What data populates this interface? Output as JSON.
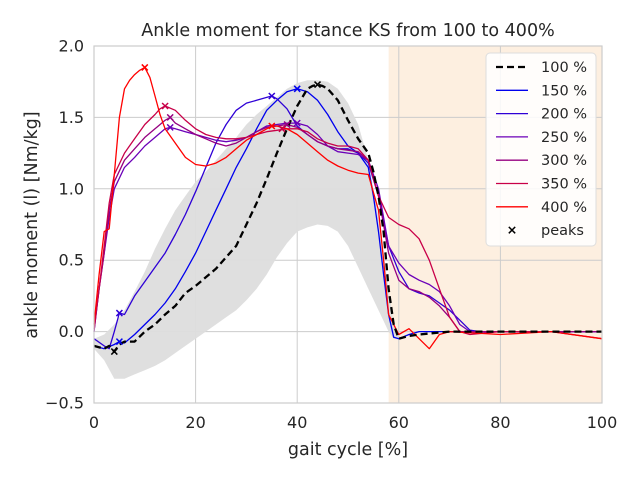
{
  "chart_data": {
    "type": "line",
    "title": "Ankle moment for stance KS from 100 to 400%",
    "xlabel": "gait cycle [%]",
    "ylabel": "ankle moment (l) [Nm/kg]",
    "xlim": [
      0,
      100
    ],
    "ylim": [
      -0.5,
      2.0
    ],
    "xticks": [
      0,
      20,
      40,
      60,
      80,
      100
    ],
    "xtick_labels": [
      "0",
      "20",
      "40",
      "60",
      "80",
      "100"
    ],
    "yticks": [
      -0.5,
      0.0,
      0.5,
      1.0,
      1.5,
      2.0
    ],
    "ytick_labels": [
      "−0.5",
      "0.0",
      "0.5",
      "1.0",
      "1.5",
      "2.0"
    ],
    "grid": true,
    "legend_position": "top-right",
    "shaded_region": {
      "x_start": 58,
      "x_end": 100,
      "color": "#fdefe0"
    },
    "band": {
      "color": "#dddddd",
      "x": [
        0,
        2,
        4,
        6,
        8,
        10,
        12,
        14,
        16,
        18,
        20,
        22,
        24,
        26,
        28,
        30,
        32,
        34,
        36,
        38,
        40,
        42,
        44,
        46,
        48,
        50,
        52,
        54,
        56,
        58,
        59,
        60
      ],
      "upper": [
        -0.05,
        -0.02,
        0.05,
        0.15,
        0.28,
        0.42,
        0.58,
        0.72,
        0.85,
        0.95,
        1.05,
        1.12,
        1.2,
        1.28,
        1.36,
        1.45,
        1.52,
        1.58,
        1.64,
        1.7,
        1.74,
        1.76,
        1.76,
        1.75,
        1.7,
        1.6,
        1.45,
        1.2,
        0.8,
        0.3,
        0.05,
        0.0
      ],
      "lower": [
        -0.12,
        -0.2,
        -0.33,
        -0.33,
        -0.3,
        -0.27,
        -0.24,
        -0.2,
        -0.15,
        -0.1,
        -0.05,
        0.0,
        0.05,
        0.1,
        0.15,
        0.22,
        0.3,
        0.4,
        0.52,
        0.62,
        0.7,
        0.73,
        0.75,
        0.74,
        0.7,
        0.6,
        0.45,
        0.3,
        0.15,
        0.0,
        -0.05,
        -0.05
      ]
    },
    "series": [
      {
        "name": "100 %",
        "color": "#000000",
        "dashed": true,
        "width": 2.3,
        "x": [
          0,
          2,
          3,
          4,
          5,
          6,
          8,
          10,
          12,
          14,
          16,
          18,
          20,
          22,
          24,
          26,
          28,
          30,
          32,
          34,
          36,
          38,
          40,
          42,
          43,
          44,
          45,
          46,
          48,
          50,
          52,
          54,
          55,
          56,
          57,
          58,
          59,
          60,
          62,
          64,
          70,
          80,
          90,
          100
        ],
        "y": [
          -0.1,
          -0.12,
          -0.1,
          -0.14,
          -0.09,
          -0.07,
          -0.07,
          0.0,
          0.05,
          0.12,
          0.18,
          0.27,
          0.32,
          0.38,
          0.44,
          0.52,
          0.6,
          0.75,
          0.9,
          1.07,
          1.25,
          1.42,
          1.58,
          1.7,
          1.72,
          1.73,
          1.72,
          1.7,
          1.62,
          1.48,
          1.35,
          1.25,
          1.12,
          0.95,
          0.7,
          0.3,
          0.05,
          -0.05,
          -0.03,
          -0.02,
          0.0,
          0.0,
          0.0,
          0.0
        ],
        "peaks": [
          [
            4,
            -0.14
          ],
          [
            44,
            1.73
          ]
        ]
      },
      {
        "name": "150 %",
        "color": "#0000ee",
        "dashed": false,
        "width": 1.3,
        "x": [
          0,
          2,
          4,
          5,
          6,
          8,
          10,
          12,
          14,
          16,
          18,
          20,
          22,
          24,
          26,
          28,
          30,
          32,
          34,
          36,
          38,
          40,
          42,
          44,
          46,
          48,
          50,
          52,
          54,
          55,
          56,
          57,
          58,
          59,
          60,
          62,
          64,
          70,
          80,
          90,
          100
        ],
        "y": [
          -0.1,
          -0.12,
          -0.09,
          -0.07,
          -0.08,
          -0.02,
          0.05,
          0.12,
          0.2,
          0.3,
          0.42,
          0.55,
          0.7,
          0.85,
          1.0,
          1.15,
          1.28,
          1.42,
          1.55,
          1.62,
          1.68,
          1.7,
          1.68,
          1.62,
          1.52,
          1.4,
          1.3,
          1.25,
          1.15,
          0.95,
          0.7,
          0.4,
          0.12,
          -0.04,
          -0.05,
          -0.02,
          0.0,
          0.0,
          0.0,
          0.0,
          0.0
        ],
        "peaks": [
          [
            5,
            -0.07
          ],
          [
            40,
            1.7
          ]
        ]
      },
      {
        "name": "200 %",
        "color": "#2e00d6",
        "dashed": false,
        "width": 1.3,
        "x": [
          0,
          2,
          3,
          4,
          5,
          6,
          8,
          10,
          12,
          14,
          16,
          18,
          20,
          22,
          24,
          26,
          28,
          30,
          32,
          34,
          35,
          36,
          38,
          40,
          42,
          44,
          46,
          48,
          50,
          52,
          54,
          56,
          58,
          60,
          62,
          64,
          66,
          68,
          70,
          72,
          74,
          76,
          80,
          90,
          100
        ],
        "y": [
          -0.05,
          -0.1,
          -0.12,
          0.0,
          0.13,
          0.12,
          0.25,
          0.35,
          0.45,
          0.55,
          0.68,
          0.82,
          0.98,
          1.15,
          1.32,
          1.45,
          1.55,
          1.6,
          1.62,
          1.64,
          1.65,
          1.63,
          1.56,
          1.44,
          1.38,
          1.33,
          1.3,
          1.28,
          1.28,
          1.25,
          1.18,
          0.95,
          0.6,
          0.42,
          0.3,
          0.27,
          0.25,
          0.2,
          0.15,
          0.08,
          0.01,
          0.0,
          0.0,
          0.0,
          0.0
        ],
        "peaks": [
          [
            5,
            0.13
          ],
          [
            35,
            1.65
          ]
        ]
      },
      {
        "name": "250 %",
        "color": "#6b00b8",
        "dashed": false,
        "width": 1.3,
        "x": [
          0,
          1,
          2,
          3,
          4,
          6,
          8,
          10,
          12,
          14,
          15,
          16,
          18,
          20,
          22,
          24,
          26,
          28,
          30,
          32,
          34,
          36,
          38,
          40,
          42,
          44,
          46,
          48,
          50,
          52,
          54,
          56,
          58,
          60,
          62,
          64,
          66,
          68,
          70,
          72,
          74,
          80,
          90,
          100
        ],
        "y": [
          0.0,
          0.3,
          0.55,
          0.8,
          1.0,
          1.15,
          1.22,
          1.3,
          1.36,
          1.42,
          1.43,
          1.42,
          1.4,
          1.38,
          1.36,
          1.34,
          1.33,
          1.34,
          1.36,
          1.4,
          1.44,
          1.45,
          1.46,
          1.46,
          1.44,
          1.38,
          1.3,
          1.26,
          1.25,
          1.24,
          1.2,
          1.0,
          0.6,
          0.48,
          0.4,
          0.36,
          0.33,
          0.28,
          0.18,
          0.05,
          0.0,
          0.0,
          0.0,
          0.0
        ],
        "peaks": [
          [
            15,
            1.43
          ],
          [
            40,
            1.46
          ]
        ]
      },
      {
        "name": "300 %",
        "color": "#960080",
        "dashed": false,
        "width": 1.3,
        "x": [
          0,
          1,
          2,
          3,
          4,
          6,
          8,
          10,
          12,
          14,
          15,
          16,
          18,
          20,
          22,
          24,
          26,
          28,
          30,
          32,
          34,
          36,
          38,
          40,
          42,
          44,
          46,
          48,
          50,
          52,
          54,
          56,
          58,
          60,
          62,
          64,
          66,
          68,
          70,
          72,
          80,
          90,
          100
        ],
        "y": [
          0.0,
          0.3,
          0.55,
          0.85,
          1.05,
          1.2,
          1.28,
          1.36,
          1.42,
          1.48,
          1.5,
          1.46,
          1.42,
          1.38,
          1.35,
          1.32,
          1.3,
          1.32,
          1.36,
          1.4,
          1.43,
          1.44,
          1.45,
          1.43,
          1.38,
          1.33,
          1.3,
          1.28,
          1.27,
          1.26,
          1.2,
          0.95,
          0.55,
          0.36,
          0.3,
          0.28,
          0.24,
          0.18,
          0.1,
          0.0,
          0.0,
          0.0,
          0.0
        ],
        "peaks": [
          [
            15,
            1.5
          ],
          [
            38,
            1.45
          ]
        ]
      },
      {
        "name": "350 %",
        "color": "#c80048",
        "dashed": false,
        "width": 1.3,
        "x": [
          0,
          1,
          2,
          3,
          4,
          6,
          8,
          10,
          12,
          13,
          14,
          16,
          18,
          20,
          22,
          24,
          26,
          28,
          30,
          32,
          34,
          36,
          38,
          40,
          42,
          44,
          46,
          48,
          50,
          52,
          54,
          56,
          58,
          60,
          62,
          64,
          66,
          68,
          70,
          72,
          74,
          80,
          90,
          100
        ],
        "y": [
          0.02,
          0.3,
          0.6,
          0.9,
          1.1,
          1.25,
          1.35,
          1.45,
          1.52,
          1.56,
          1.58,
          1.55,
          1.48,
          1.42,
          1.38,
          1.36,
          1.35,
          1.35,
          1.36,
          1.38,
          1.4,
          1.41,
          1.42,
          1.42,
          1.4,
          1.35,
          1.32,
          1.3,
          1.3,
          1.28,
          1.2,
          0.95,
          0.8,
          0.75,
          0.72,
          0.65,
          0.5,
          0.3,
          0.1,
          0.0,
          -0.02,
          0.0,
          0.0,
          -0.05
        ],
        "peaks": [
          [
            14,
            1.58
          ],
          [
            37,
            1.42
          ]
        ]
      },
      {
        "name": "400 %",
        "color": "#ff0000",
        "dashed": false,
        "width": 1.3,
        "x": [
          0,
          1,
          2,
          3,
          4,
          5,
          6,
          7,
          8,
          9,
          10,
          11,
          12,
          13,
          14,
          16,
          18,
          20,
          22,
          24,
          26,
          28,
          30,
          32,
          34,
          35,
          36,
          38,
          40,
          42,
          44,
          46,
          48,
          50,
          52,
          54,
          56,
          57,
          58,
          60,
          62,
          64,
          66,
          68,
          70,
          80,
          90,
          100
        ],
        "y": [
          0.05,
          0.4,
          0.7,
          0.72,
          1.1,
          1.5,
          1.7,
          1.76,
          1.8,
          1.83,
          1.85,
          1.78,
          1.65,
          1.52,
          1.42,
          1.32,
          1.22,
          1.17,
          1.16,
          1.18,
          1.22,
          1.28,
          1.34,
          1.38,
          1.42,
          1.44,
          1.44,
          1.42,
          1.38,
          1.32,
          1.26,
          1.2,
          1.16,
          1.13,
          1.11,
          1.1,
          0.85,
          0.5,
          0.12,
          -0.02,
          0.02,
          -0.05,
          -0.12,
          -0.02,
          0.0,
          -0.02,
          0.0,
          -0.05
        ],
        "peaks": [
          [
            10,
            1.85
          ],
          [
            35,
            1.44
          ]
        ]
      }
    ],
    "legend_peaks_label": "peaks"
  }
}
